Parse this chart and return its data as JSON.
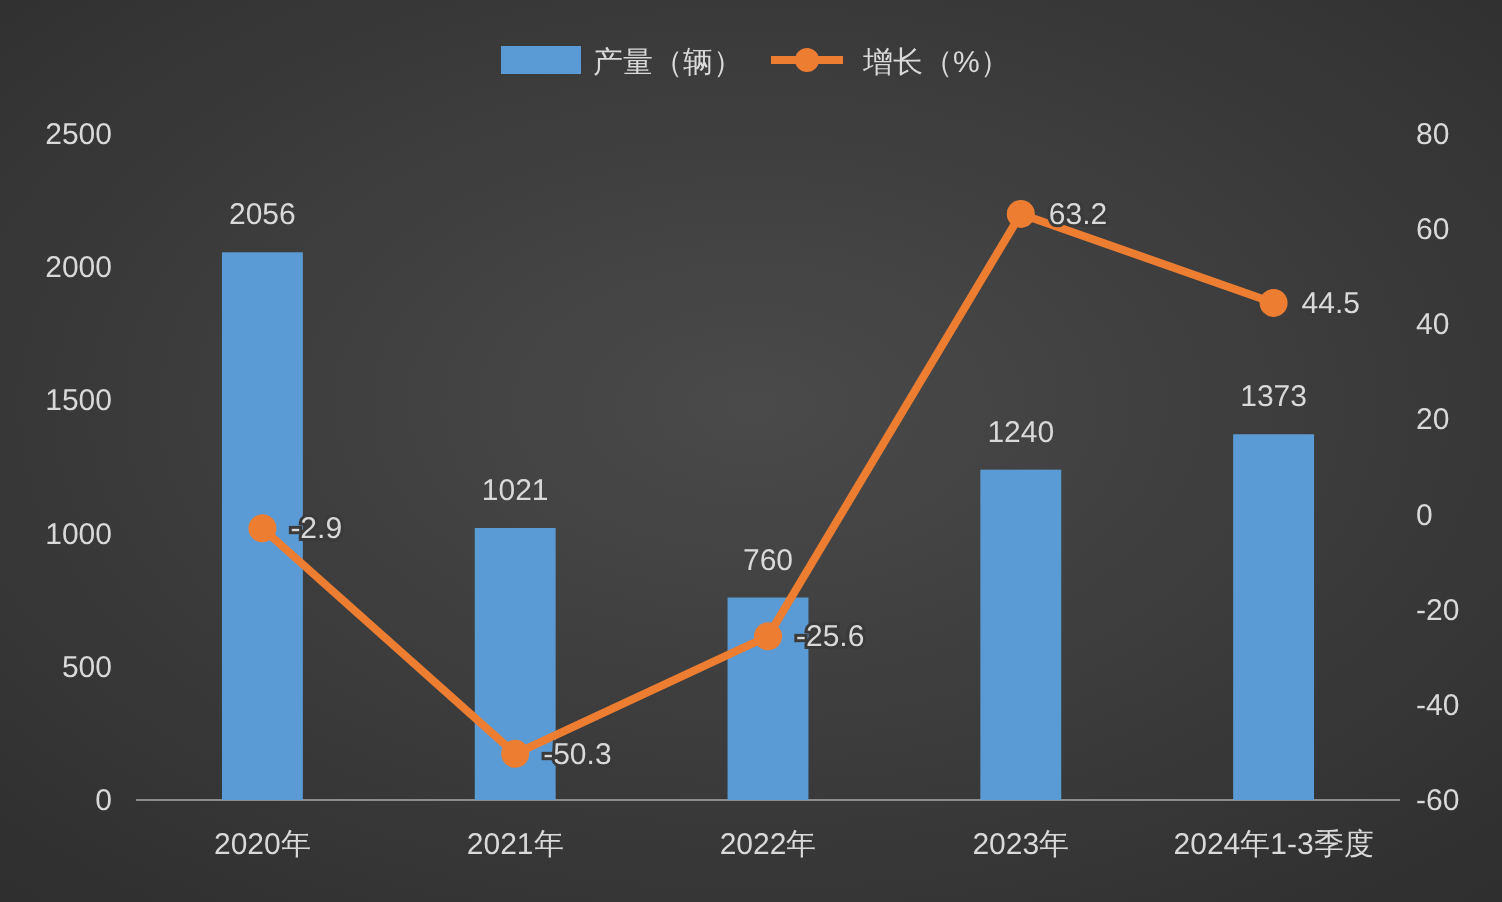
{
  "chart_data": {
    "type": "bar",
    "categories": [
      "2020年",
      "2021年",
      "2022年",
      "2023年",
      "2024年1-3季度"
    ],
    "series": [
      {
        "name": "产量（辆）",
        "color": "#5b9bd5",
        "values": [
          2056,
          1021,
          760,
          1240,
          1373
        ]
      },
      {
        "name": "增长（%）",
        "type": "line",
        "axis": "y2",
        "color": "#ed7d31",
        "values": [
          -2.9,
          -50.3,
          -25.6,
          63.2,
          44.5
        ]
      }
    ],
    "ylim": [
      0,
      2500
    ],
    "yticks": [
      0,
      500,
      1000,
      1500,
      2000,
      2500
    ],
    "y2lim": [
      -60,
      80
    ],
    "y2ticks": [
      -60,
      -40,
      -20,
      0,
      20,
      40,
      60,
      80
    ],
    "data_labels": true,
    "legend": "top",
    "marker": "circle",
    "grid": false
  }
}
